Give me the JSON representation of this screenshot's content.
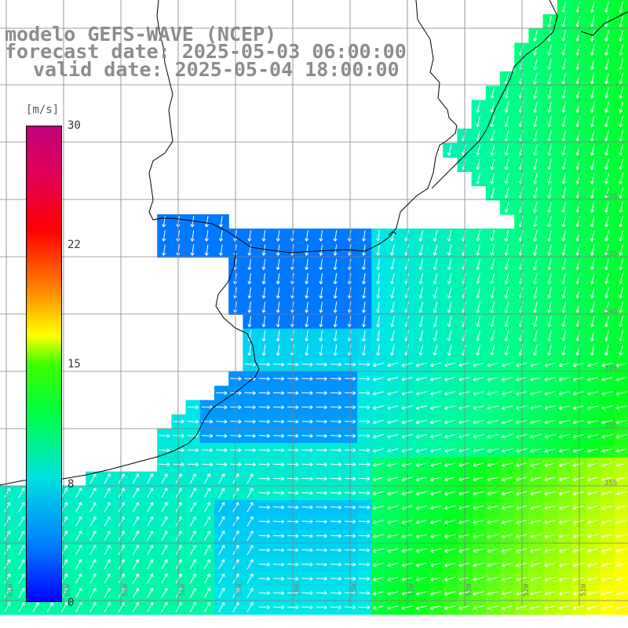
{
  "header": {
    "model_line": "modelo GEFS-WAVE (NCEP)",
    "forecast_line": "forecast date: 2025-05-03 06:00:00",
    "valid_line": "valid date: 2025-05-04 18:00:00"
  },
  "colorbar": {
    "units": "[m/s]",
    "ticks": [
      "30",
      "22",
      "15",
      "8",
      "0"
    ],
    "tick_values": [
      30,
      22,
      15,
      8,
      0
    ],
    "range": [
      0,
      30
    ]
  },
  "map": {
    "lon_labels": [
      "61W",
      "60W",
      "59W",
      "58W",
      "57W",
      "56W",
      "55W",
      "54W",
      "53W",
      "52W",
      "51W"
    ],
    "lat_labels": [
      "33S",
      "34S",
      "35S",
      "36S",
      "37S",
      "38S"
    ],
    "colors": {
      "land": "#ffffff",
      "coast": "#000000",
      "grid": "#808080",
      "arrow": "#ffffff"
    }
  }
}
